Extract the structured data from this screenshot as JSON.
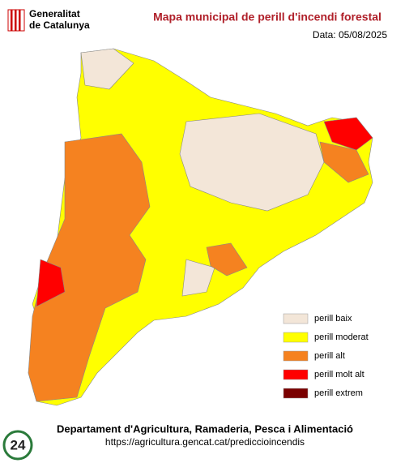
{
  "header": {
    "logo_line1": "Generalitat",
    "logo_line2": "de Catalunya",
    "title": "Mapa municipal de perill d'incendi forestal",
    "date": "Data: 05/08/2025"
  },
  "legend": [
    {
      "label": "perill baix",
      "color": "#f3e6d8"
    },
    {
      "label": "perill moderat",
      "color": "#ffff00"
    },
    {
      "label": "perill alt",
      "color": "#f58220"
    },
    {
      "label": "perill molt alt",
      "color": "#ff0000"
    },
    {
      "label": "perill extrem",
      "color": "#7a0000"
    }
  ],
  "footer": {
    "department": "Departament d'Agricultura, Ramaderia, Pesca i Alimentació",
    "url": "https://agricultura.gencat.cat/prediccioincendis",
    "badge": "24"
  }
}
